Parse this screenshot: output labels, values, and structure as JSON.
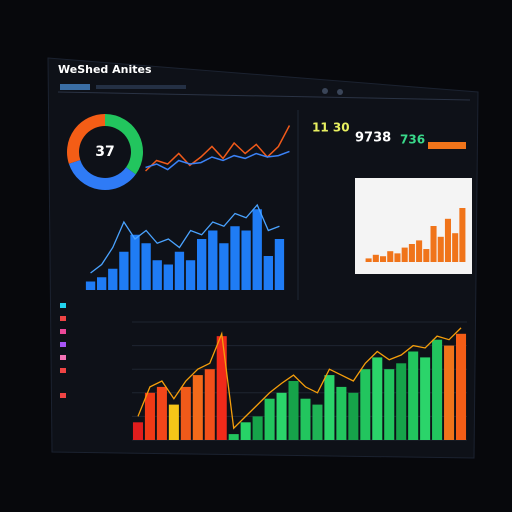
{
  "header": {
    "title": "WeShed Anites"
  },
  "kpis": [
    {
      "value": "11 30",
      "color": "#e8f060"
    },
    {
      "value": "9738",
      "color": "#ffffff"
    },
    {
      "value": "736",
      "color": "#39d98a"
    }
  ],
  "chart_data": [
    {
      "type": "pie",
      "center_label": "37",
      "values": [
        35,
        35,
        30
      ],
      "colors": [
        "#22c55e",
        "#2f7bf6",
        "#f45d16"
      ]
    },
    {
      "type": "line",
      "ylim": [
        0,
        100
      ],
      "series": [
        {
          "color": "#f05a1a",
          "values": [
            20,
            35,
            30,
            45,
            28,
            40,
            55,
            38,
            60,
            45,
            58,
            40,
            55,
            85
          ]
        },
        {
          "color": "#3b82f6",
          "values": [
            25,
            30,
            22,
            35,
            30,
            32,
            40,
            35,
            42,
            38,
            45,
            40,
            42,
            48
          ]
        }
      ]
    },
    {
      "type": "bar",
      "ylim": [
        0,
        100
      ],
      "color": "#1f7cf5",
      "values": [
        10,
        15,
        25,
        45,
        65,
        55,
        35,
        30,
        45,
        35,
        60,
        70,
        55,
        75,
        70,
        95,
        40,
        60
      ],
      "line": {
        "color": "#4aa3ff",
        "values": [
          20,
          30,
          50,
          80,
          60,
          70,
          55,
          60,
          50,
          70,
          65,
          80,
          75,
          90,
          85,
          100,
          70,
          75
        ]
      }
    },
    {
      "type": "bar",
      "ylim": [
        0,
        100
      ],
      "color": "#f0741a",
      "values": [
        5,
        10,
        8,
        15,
        12,
        20,
        25,
        30,
        18,
        50,
        35,
        60,
        40,
        75
      ]
    },
    {
      "type": "bar",
      "ylim": [
        0,
        100
      ],
      "values": [
        15,
        40,
        45,
        30,
        45,
        55,
        60,
        88,
        5,
        15,
        20,
        35,
        40,
        50,
        35,
        30,
        55,
        45,
        40,
        60,
        70,
        60,
        65,
        75,
        70,
        85,
        80,
        90
      ],
      "colors": [
        "#e11d1d",
        "#f03a16",
        "#f2461a",
        "#f5c518",
        "#f05a1a",
        "#f36a1a",
        "#f2501a",
        "#f02a1a",
        "#22c55e",
        "#27d367",
        "#16a34a",
        "#22c55e",
        "#2bd46a",
        "#16a34a",
        "#22c55e",
        "#1fb355",
        "#2bd46a",
        "#22c55e",
        "#16a34a",
        "#22c55e",
        "#2bd46a",
        "#22c55e",
        "#16a34a",
        "#22c55e",
        "#2bd46a",
        "#22c55e",
        "#f0741a",
        "#f45d16"
      ],
      "line": {
        "color": "#f59e0b",
        "values": [
          20,
          45,
          50,
          35,
          50,
          60,
          65,
          90,
          10,
          20,
          30,
          40,
          48,
          55,
          45,
          40,
          60,
          55,
          50,
          65,
          75,
          68,
          72,
          80,
          78,
          88,
          85,
          95
        ]
      }
    }
  ]
}
